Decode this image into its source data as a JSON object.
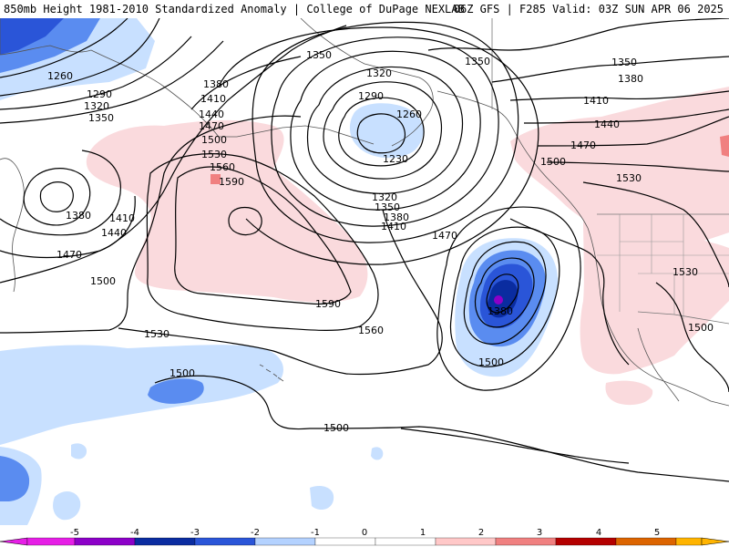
{
  "header": {
    "title": "850mb Height 1981-2010 Standardized Anomaly | College of DuPage NEXLAB",
    "run_info": "06Z GFS | F285 Valid: 03Z SUN APR 06 2025"
  },
  "map": {
    "contour_labels": [
      "1260",
      "1290",
      "1320",
      "1350",
      "1350",
      "1380",
      "1410",
      "1440",
      "1470",
      "1500",
      "1530",
      "1560",
      "1590",
      "1380",
      "1410",
      "1440",
      "1470",
      "1500",
      "1530",
      "1560",
      "1590",
      "1350",
      "1320",
      "1290",
      "1260",
      "1230",
      "1320",
      "1350",
      "1380",
      "1410",
      "1470",
      "1380",
      "1500",
      "1350",
      "1380",
      "1410",
      "1440",
      "1470",
      "1500",
      "1530",
      "1530",
      "1500",
      "1500",
      "1500"
    ]
  },
  "legend": {
    "ticks": [
      "-5",
      "-4",
      "-3",
      "-2",
      "-1",
      "0",
      "1",
      "2",
      "3",
      "4",
      "5"
    ],
    "colors": [
      "#e61ee6",
      "#8c00c8",
      "#0a2ca0",
      "#2a55d8",
      "#5a8cf0",
      "#b4d2ff",
      "#ffffff",
      "#ffc8c8",
      "#f08080",
      "#dc2828",
      "#b40000",
      "#dc6400",
      "#ffb400"
    ]
  },
  "colors": {
    "negative_light": "#c8e0ff",
    "negative_medium": "#5a8cf0",
    "negative_strong": "#2a55d8",
    "negative_extreme": "#8c00c8",
    "positive_light": "#fadadd",
    "positive_medium": "#f08080"
  }
}
